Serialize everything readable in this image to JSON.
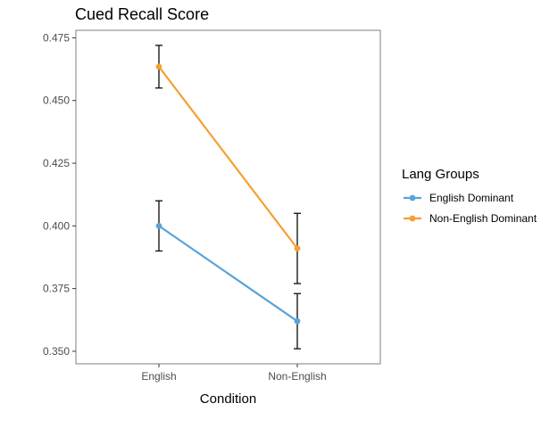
{
  "chart_data": {
    "type": "line",
    "title": "Cued Recall Score",
    "xlabel": "Condition",
    "ylabel": "",
    "categories": [
      "English",
      "Non-English"
    ],
    "ylim": [
      0.345,
      0.478
    ],
    "yticks": [
      0.35,
      0.375,
      0.4,
      0.425,
      0.45,
      0.475
    ],
    "ytick_labels": [
      "0.350",
      "0.375",
      "0.400",
      "0.425",
      "0.450",
      "0.475"
    ],
    "grid": false,
    "error_bars": true,
    "legend": {
      "title": "Lang Groups",
      "placement": "right"
    },
    "series": [
      {
        "name": "English Dominant",
        "color": "#5ba3d9",
        "values": [
          0.4,
          0.362
        ],
        "lower": [
          0.39,
          0.351
        ],
        "upper": [
          0.41,
          0.373
        ]
      },
      {
        "name": "Non-English Dominant",
        "color": "#f5a030",
        "values": [
          0.4635,
          0.391
        ],
        "lower": [
          0.455,
          0.377
        ],
        "upper": [
          0.472,
          0.405
        ]
      }
    ]
  }
}
